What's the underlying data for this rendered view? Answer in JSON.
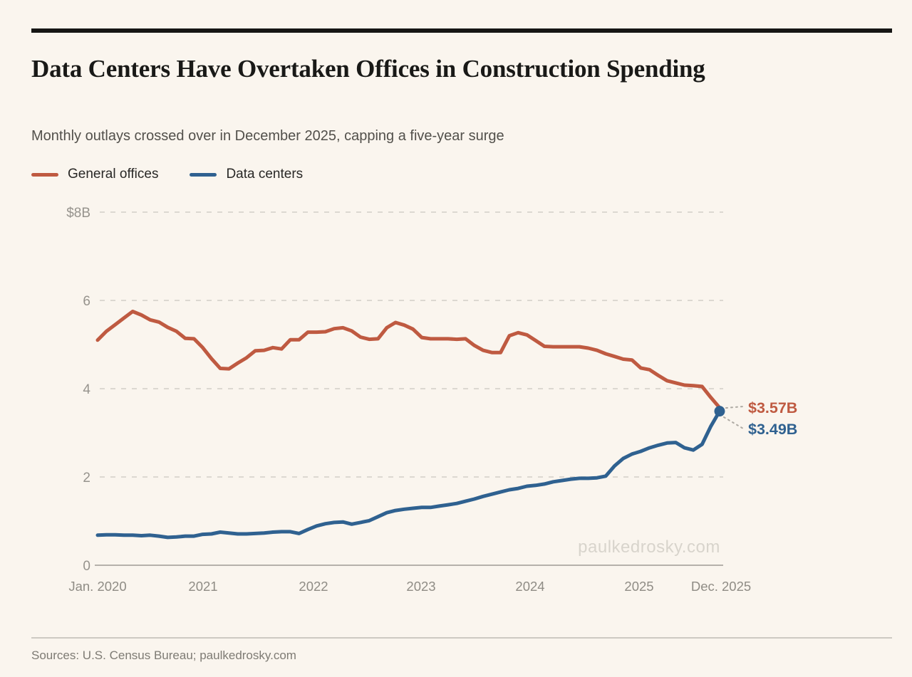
{
  "header": {
    "title": "Data Centers Have Overtaken Offices in Construction Spending",
    "subtitle": "Monthly outlays crossed over in December 2025, capping a five-year surge"
  },
  "legend": {
    "items": [
      {
        "label": "General offices",
        "color": "#bf5a41"
      },
      {
        "label": "Data centers",
        "color": "#2f6190"
      }
    ]
  },
  "chart_data": {
    "type": "line",
    "title": "Data Centers Have Overtaken Offices in Construction Spending",
    "subtitle": "Monthly outlays crossed over in December 2025, capping a five-year surge",
    "x_unit": "month",
    "x_range": [
      "Jan 2020",
      "Dec 2025"
    ],
    "x_tick_labels": [
      "Jan. 2020",
      "2021",
      "2022",
      "2023",
      "2024",
      "2025",
      "Dec. 2025"
    ],
    "y_ticks": [
      8,
      6,
      4,
      2,
      0
    ],
    "y_tick_labels": [
      "$8B",
      "6",
      "4",
      "2",
      "0"
    ],
    "ylim": [
      0,
      8
    ],
    "grid": "horizontal-dashed",
    "legend_position": "top-left",
    "series": [
      {
        "name": "General offices",
        "color": "#bf5a41",
        "values": [
          5.1,
          5.3,
          5.45,
          5.6,
          5.75,
          5.67,
          5.56,
          5.51,
          5.39,
          5.3,
          5.14,
          5.13,
          4.93,
          4.68,
          4.46,
          4.45,
          4.58,
          4.7,
          4.86,
          4.87,
          4.93,
          4.9,
          5.11,
          5.11,
          5.28,
          5.28,
          5.29,
          5.36,
          5.38,
          5.31,
          5.17,
          5.12,
          5.13,
          5.38,
          5.5,
          5.44,
          5.35,
          5.16,
          5.13,
          5.13,
          5.13,
          5.12,
          5.13,
          4.98,
          4.87,
          4.82,
          4.82,
          5.2,
          5.27,
          5.22,
          5.09,
          4.96,
          4.95,
          4.95,
          4.95,
          4.95,
          4.92,
          4.87,
          4.79,
          4.73,
          4.67,
          4.65,
          4.47,
          4.43,
          4.3,
          4.18,
          4.13,
          4.08,
          4.07,
          4.05,
          3.8,
          3.57
        ]
      },
      {
        "name": "Data centers",
        "color": "#2f6190",
        "values": [
          0.68,
          0.69,
          0.69,
          0.68,
          0.68,
          0.67,
          0.68,
          0.66,
          0.63,
          0.64,
          0.66,
          0.66,
          0.7,
          0.71,
          0.75,
          0.73,
          0.71,
          0.71,
          0.72,
          0.73,
          0.75,
          0.76,
          0.76,
          0.72,
          0.81,
          0.89,
          0.94,
          0.97,
          0.98,
          0.93,
          0.97,
          1.01,
          1.1,
          1.19,
          1.24,
          1.27,
          1.29,
          1.31,
          1.31,
          1.34,
          1.37,
          1.4,
          1.45,
          1.5,
          1.56,
          1.61,
          1.66,
          1.71,
          1.74,
          1.79,
          1.81,
          1.84,
          1.89,
          1.92,
          1.95,
          1.97,
          1.97,
          1.98,
          2.02,
          2.25,
          2.42,
          2.52,
          2.58,
          2.66,
          2.72,
          2.77,
          2.78,
          2.66,
          2.61,
          2.74,
          3.15,
          3.49
        ]
      }
    ],
    "end_point_marker": {
      "series": "Data centers",
      "color": "#2f6190"
    },
    "annotations": [
      {
        "label": "$3.57B",
        "series": "General offices",
        "value": 3.57,
        "color": "#bf5a41"
      },
      {
        "label": "$3.49B",
        "series": "Data centers",
        "value": 3.49,
        "color": "#2f6190"
      }
    ],
    "watermark": "paulkedrosky.com"
  },
  "footer": {
    "sources": "Sources: U.S. Census Bureau; paulkedrosky.com"
  }
}
